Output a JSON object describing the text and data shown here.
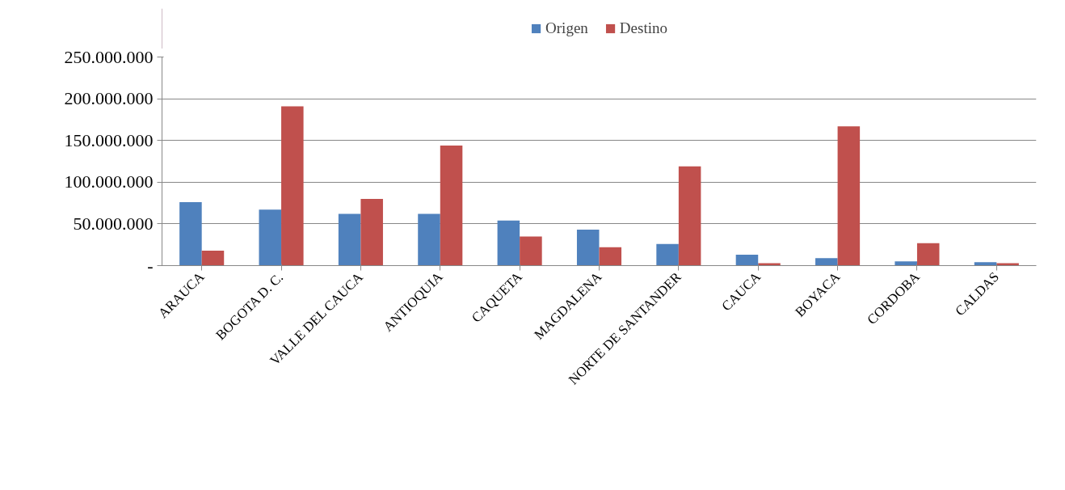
{
  "chart_data": {
    "type": "bar",
    "categories": [
      "ARAUCA",
      "BOGOTA D. C.",
      "VALLE DEL CAUCA",
      "ANTIOQUIA",
      "CAQUETA",
      "MAGDALENA",
      "NORTE DE SANTANDER",
      "CAUCA",
      "BOYACA",
      "CORDOBA",
      "CALDAS"
    ],
    "series": [
      {
        "name": "Origen",
        "color": "#4f81bd",
        "values": [
          76000000,
          67000000,
          62000000,
          62000000,
          54000000,
          43000000,
          26000000,
          13000000,
          9000000,
          5000000,
          4000000
        ]
      },
      {
        "name": "Destino",
        "color": "#c0504d",
        "values": [
          18000000,
          191000000,
          80000000,
          144000000,
          35000000,
          22000000,
          119000000,
          3000000,
          167000000,
          27000000,
          3000000
        ]
      }
    ],
    "ylim": [
      0,
      250000000
    ],
    "yticks": [
      {
        "value": 0,
        "label": "-"
      },
      {
        "value": 50000000,
        "label": "50.000.000"
      },
      {
        "value": 100000000,
        "label": "100.000.000"
      },
      {
        "value": 150000000,
        "label": "150.000.000"
      },
      {
        "value": 200000000,
        "label": "200.000.000"
      },
      {
        "value": 250000000,
        "label": "250.000.000"
      }
    ],
    "grid": "y",
    "legend": "top"
  }
}
